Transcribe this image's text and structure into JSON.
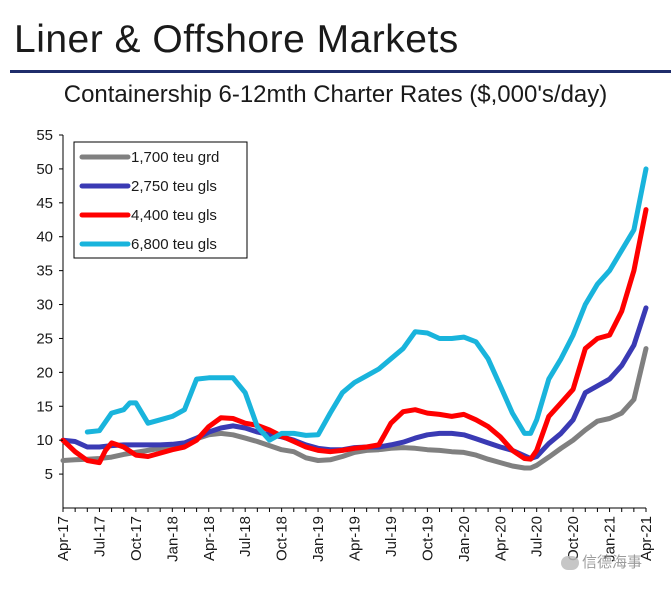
{
  "header": {
    "title": "Liner & Offshore Markets"
  },
  "watermark": {
    "text": "信德海事"
  },
  "colors": {
    "rule": "#1f2d6b",
    "grey": "#808080",
    "blue": "#3a3ab4",
    "red": "#ff0000",
    "cyan": "#19b4dc"
  },
  "chart_data": {
    "type": "line",
    "title": "Containership 6-12mth Charter Rates ($,000's/day)",
    "xlabel": "",
    "ylabel": "",
    "ylim": [
      0,
      55
    ],
    "yticks": [
      5,
      10,
      15,
      20,
      25,
      30,
      35,
      40,
      45,
      50,
      55
    ],
    "xlim": [
      0,
      48
    ],
    "xticks": [
      {
        "label": "Apr-17",
        "month": 0
      },
      {
        "label": "Jul-17",
        "month": 3
      },
      {
        "label": "Oct-17",
        "month": 6
      },
      {
        "label": "Jan-18",
        "month": 9
      },
      {
        "label": "Apr-18",
        "month": 12
      },
      {
        "label": "Jul-18",
        "month": 15
      },
      {
        "label": "Oct-18",
        "month": 18
      },
      {
        "label": "Jan-19",
        "month": 21
      },
      {
        "label": "Apr-19",
        "month": 24
      },
      {
        "label": "Jul-19",
        "month": 27
      },
      {
        "label": "Oct-19",
        "month": 30
      },
      {
        "label": "Jan-20",
        "month": 33
      },
      {
        "label": "Apr-20",
        "month": 36
      },
      {
        "label": "Jul-20",
        "month": 39
      },
      {
        "label": "Oct-20",
        "month": 42
      },
      {
        "label": "Jan-21",
        "month": 45
      },
      {
        "label": "Apr-21",
        "month": 48
      }
    ],
    "legend_position": "top-left",
    "series": [
      {
        "name": "1,700 teu grd",
        "color": "#808080",
        "points": [
          [
            0,
            7
          ],
          [
            1,
            7.1
          ],
          [
            2,
            7.2
          ],
          [
            3,
            7.3
          ],
          [
            4,
            7.5
          ],
          [
            5,
            7.9
          ],
          [
            6,
            8.2
          ],
          [
            7,
            8.5
          ],
          [
            8,
            8.8
          ],
          [
            9,
            9.1
          ],
          [
            10,
            9.5
          ],
          [
            11,
            10.2
          ],
          [
            12,
            10.8
          ],
          [
            13,
            11
          ],
          [
            14,
            10.8
          ],
          [
            15,
            10.3
          ],
          [
            16,
            9.8
          ],
          [
            17,
            9.2
          ],
          [
            18,
            8.6
          ],
          [
            19,
            8.3
          ],
          [
            20,
            7.4
          ],
          [
            21,
            7
          ],
          [
            22,
            7.1
          ],
          [
            23,
            7.6
          ],
          [
            24,
            8.2
          ],
          [
            25,
            8.5
          ],
          [
            26,
            8.6
          ],
          [
            27,
            8.8
          ],
          [
            28,
            8.9
          ],
          [
            29,
            8.8
          ],
          [
            30,
            8.6
          ],
          [
            31,
            8.5
          ],
          [
            32,
            8.3
          ],
          [
            33,
            8.2
          ],
          [
            34,
            7.8
          ],
          [
            35,
            7.2
          ],
          [
            36,
            6.7
          ],
          [
            37,
            6.2
          ],
          [
            38,
            5.9
          ],
          [
            38.5,
            5.9
          ],
          [
            39,
            6.3
          ],
          [
            40,
            7.5
          ],
          [
            41,
            8.8
          ],
          [
            42,
            10
          ],
          [
            43,
            11.5
          ],
          [
            44,
            12.8
          ],
          [
            45,
            13.2
          ],
          [
            46,
            14
          ],
          [
            47,
            16
          ],
          [
            48,
            23.5
          ]
        ]
      },
      {
        "name": "2,750 teu gls",
        "color": "#3a3ab4",
        "points": [
          [
            0,
            10
          ],
          [
            1,
            9.8
          ],
          [
            2,
            9
          ],
          [
            3,
            9
          ],
          [
            4,
            9.2
          ],
          [
            5,
            9.3
          ],
          [
            6,
            9.3
          ],
          [
            7,
            9.3
          ],
          [
            8,
            9.3
          ],
          [
            9,
            9.4
          ],
          [
            10,
            9.6
          ],
          [
            11,
            10.3
          ],
          [
            12,
            11.2
          ],
          [
            13,
            11.8
          ],
          [
            14,
            12.1
          ],
          [
            15,
            11.8
          ],
          [
            16,
            11.2
          ],
          [
            17,
            10.8
          ],
          [
            18,
            10.5
          ],
          [
            19,
            10
          ],
          [
            20,
            9.3
          ],
          [
            21,
            8.8
          ],
          [
            22,
            8.6
          ],
          [
            23,
            8.6
          ],
          [
            24,
            8.9
          ],
          [
            25,
            9
          ],
          [
            26,
            9
          ],
          [
            27,
            9.3
          ],
          [
            28,
            9.7
          ],
          [
            29,
            10.3
          ],
          [
            30,
            10.8
          ],
          [
            31,
            11
          ],
          [
            32,
            11
          ],
          [
            33,
            10.8
          ],
          [
            34,
            10.2
          ],
          [
            35,
            9.6
          ],
          [
            36,
            9
          ],
          [
            37,
            8.5
          ],
          [
            38,
            7.7
          ],
          [
            38.5,
            7.3
          ],
          [
            39,
            7.6
          ],
          [
            40,
            9.5
          ],
          [
            41,
            11
          ],
          [
            42,
            13
          ],
          [
            43,
            17
          ],
          [
            44,
            18
          ],
          [
            45,
            19
          ],
          [
            46,
            21
          ],
          [
            47,
            24
          ],
          [
            48,
            29.5
          ]
        ]
      },
      {
        "name": "4,400 teu gls",
        "color": "#ff0000",
        "points": [
          [
            0,
            10
          ],
          [
            1,
            8.3
          ],
          [
            2,
            7
          ],
          [
            3,
            6.7
          ],
          [
            3.5,
            8.5
          ],
          [
            4,
            9.6
          ],
          [
            5,
            9
          ],
          [
            6,
            7.8
          ],
          [
            7,
            7.6
          ],
          [
            8,
            8.1
          ],
          [
            9,
            8.6
          ],
          [
            10,
            9
          ],
          [
            11,
            10
          ],
          [
            12,
            12
          ],
          [
            13,
            13.3
          ],
          [
            14,
            13.2
          ],
          [
            15,
            12.5
          ],
          [
            16,
            12.2
          ],
          [
            17,
            11.5
          ],
          [
            18,
            10.6
          ],
          [
            19,
            9.8
          ],
          [
            20,
            9
          ],
          [
            21,
            8.5
          ],
          [
            22,
            8.3
          ],
          [
            23,
            8.5
          ],
          [
            24,
            8.8
          ],
          [
            25,
            9
          ],
          [
            26,
            9.3
          ],
          [
            27,
            12.5
          ],
          [
            28,
            14.2
          ],
          [
            29,
            14.5
          ],
          [
            30,
            14
          ],
          [
            31,
            13.8
          ],
          [
            32,
            13.5
          ],
          [
            33,
            13.8
          ],
          [
            34,
            13
          ],
          [
            35,
            12
          ],
          [
            36,
            10.5
          ],
          [
            37,
            8.5
          ],
          [
            38,
            7.3
          ],
          [
            38.5,
            7.2
          ],
          [
            39,
            8.5
          ],
          [
            40,
            13.5
          ],
          [
            41,
            15.5
          ],
          [
            42,
            17.5
          ],
          [
            43,
            23.5
          ],
          [
            44,
            25
          ],
          [
            45,
            25.5
          ],
          [
            46,
            29
          ],
          [
            47,
            35
          ],
          [
            48,
            44
          ]
        ]
      },
      {
        "name": "6,800 teu gls",
        "color": "#19b4dc",
        "points": [
          [
            2,
            11.2
          ],
          [
            3,
            11.4
          ],
          [
            4,
            14
          ],
          [
            5,
            14.5
          ],
          [
            5.5,
            15.5
          ],
          [
            6,
            15.5
          ],
          [
            7,
            12.5
          ],
          [
            8,
            13
          ],
          [
            9,
            13.5
          ],
          [
            10,
            14.5
          ],
          [
            11,
            19
          ],
          [
            12,
            19.2
          ],
          [
            13,
            19.2
          ],
          [
            14,
            19.2
          ],
          [
            15,
            17
          ],
          [
            16,
            12
          ],
          [
            17,
            10
          ],
          [
            18,
            11
          ],
          [
            19,
            11
          ],
          [
            20,
            10.7
          ],
          [
            21,
            10.8
          ],
          [
            22,
            14
          ],
          [
            23,
            17
          ],
          [
            24,
            18.5
          ],
          [
            25,
            19.5
          ],
          [
            26,
            20.5
          ],
          [
            27,
            22
          ],
          [
            28,
            23.5
          ],
          [
            29,
            26
          ],
          [
            30,
            25.8
          ],
          [
            31,
            25
          ],
          [
            32,
            25
          ],
          [
            33,
            25.2
          ],
          [
            34,
            24.5
          ],
          [
            35,
            22
          ],
          [
            36,
            18
          ],
          [
            37,
            14
          ],
          [
            38,
            11
          ],
          [
            38.5,
            11
          ],
          [
            39,
            13
          ],
          [
            40,
            19
          ],
          [
            41,
            22
          ],
          [
            42,
            25.5
          ],
          [
            43,
            30
          ],
          [
            44,
            33
          ],
          [
            45,
            35
          ],
          [
            46,
            38
          ],
          [
            47,
            41
          ],
          [
            48,
            50
          ]
        ]
      }
    ]
  }
}
